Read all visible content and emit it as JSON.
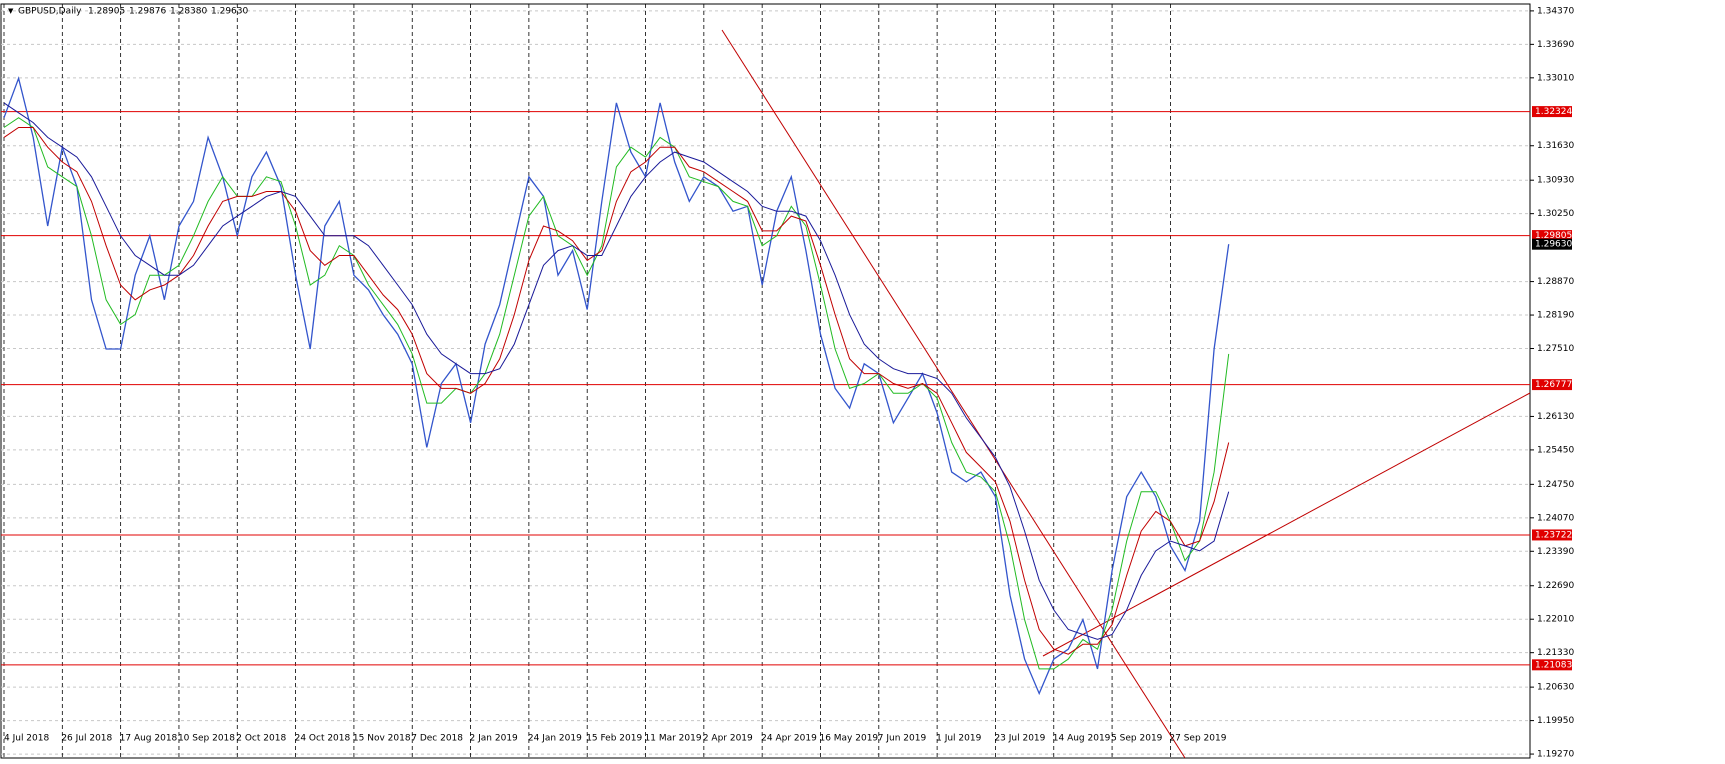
{
  "chart_data": {
    "type": "line",
    "title": "GBPUSD,Daily",
    "quote": [
      1.28905,
      1.29876,
      {
        "value": 1.2838,
        "label": "1.28380"
      },
      {
        "value": 1.2963,
        "label": "1.29630"
      }
    ],
    "categories": [
      "4 Jul 2018",
      null,
      null,
      null,
      "26 Jul 2018",
      null,
      null,
      null,
      "17 Aug 2018",
      null,
      null,
      null,
      "10 Sep 2018",
      null,
      null,
      null,
      "2 Oct 2018",
      null,
      null,
      null,
      "24 Oct 2018",
      null,
      null,
      null,
      "15 Nov 2018",
      null,
      null,
      null,
      "7 Dec 2018",
      null,
      null,
      null,
      "2 Jan 2019",
      null,
      null,
      null,
      "24 Jan 2019",
      null,
      null,
      null,
      "15 Feb 2019",
      null,
      null,
      null,
      "11 Mar 2019",
      null,
      null,
      null,
      "2 Apr 2019",
      null,
      null,
      null,
      "24 Apr 2019",
      null,
      null,
      null,
      "16 May 2019",
      null,
      null,
      null,
      "7 Jun 2019",
      null,
      null,
      null,
      "1 Jul 2019",
      null,
      null,
      null,
      "23 Jul 2019",
      null,
      null,
      null,
      "14 Aug 2019",
      null,
      null,
      null,
      "5 Sep 2019",
      null,
      null,
      null,
      "27 Sep 2019",
      null,
      null,
      null,
      null
    ],
    "series": [
      {
        "color": "#3355cc",
        "values": [
          1.322,
          1.33,
          1.318,
          1.3,
          1.316,
          1.308,
          1.285,
          1.275,
          1.275,
          1.29,
          1.298,
          1.285,
          1.3,
          1.305,
          1.318,
          1.31,
          1.298,
          1.31,
          1.315,
          1.308,
          1.29,
          1.275,
          1.3,
          1.305,
          1.29,
          1.287,
          1.282,
          1.278,
          1.272,
          1.255,
          1.268,
          1.272,
          1.26,
          1.276,
          1.284,
          1.297,
          1.31,
          1.306,
          1.29,
          1.295,
          1.283,
          1.305,
          1.325,
          1.315,
          1.31,
          1.325,
          1.313,
          1.305,
          1.31,
          1.308,
          1.303,
          1.304,
          1.288,
          1.303,
          1.31,
          1.295,
          1.278,
          1.267,
          1.263,
          1.272,
          1.27,
          1.26,
          1.265,
          1.27,
          1.262,
          1.25,
          1.248,
          1.25,
          1.245,
          1.225,
          1.212,
          1.205,
          1.212,
          1.214,
          1.22,
          1.21,
          1.23,
          1.245,
          1.25,
          1.245,
          1.235,
          1.23,
          1.24,
          1.275,
          1.2963
        ]
      },
      {
        "color": "#22bb22",
        "values": [
          1.32,
          1.322,
          1.32,
          1.312,
          1.31,
          1.308,
          1.298,
          1.285,
          1.28,
          1.282,
          1.29,
          1.29,
          1.292,
          1.298,
          1.305,
          1.31,
          1.306,
          1.306,
          1.31,
          1.309,
          1.3,
          1.288,
          1.29,
          1.296,
          1.294,
          1.288,
          1.284,
          1.28,
          1.274,
          1.264,
          1.264,
          1.267,
          1.266,
          1.27,
          1.278,
          1.29,
          1.302,
          1.306,
          1.298,
          1.296,
          1.29,
          1.296,
          1.312,
          1.316,
          1.314,
          1.318,
          1.316,
          1.31,
          1.309,
          1.308,
          1.305,
          1.304,
          1.296,
          1.298,
          1.304,
          1.3,
          1.288,
          1.275,
          1.267,
          1.268,
          1.27,
          1.266,
          1.266,
          1.268,
          1.265,
          1.256,
          1.25,
          1.249,
          1.246,
          1.235,
          1.22,
          1.21,
          1.21,
          1.212,
          1.216,
          1.214,
          1.222,
          1.236,
          1.246,
          1.246,
          1.24,
          1.232,
          1.236,
          1.25,
          1.274
        ]
      },
      {
        "color": "#c00000",
        "values": [
          1.318,
          1.32,
          1.32,
          1.316,
          1.313,
          1.311,
          1.305,
          1.296,
          1.288,
          1.285,
          1.287,
          1.288,
          1.29,
          1.294,
          1.3,
          1.305,
          1.306,
          1.306,
          1.307,
          1.307,
          1.303,
          1.295,
          1.292,
          1.294,
          1.294,
          1.29,
          1.286,
          1.283,
          1.278,
          1.27,
          1.267,
          1.267,
          1.266,
          1.268,
          1.273,
          1.282,
          1.293,
          1.3,
          1.299,
          1.297,
          1.293,
          1.295,
          1.305,
          1.311,
          1.313,
          1.316,
          1.316,
          1.312,
          1.311,
          1.309,
          1.307,
          1.305,
          1.299,
          1.299,
          1.302,
          1.301,
          1.292,
          1.282,
          1.273,
          1.27,
          1.27,
          1.268,
          1.267,
          1.268,
          1.266,
          1.26,
          1.254,
          1.251,
          1.248,
          1.24,
          1.228,
          1.218,
          1.214,
          1.213,
          1.215,
          1.215,
          1.219,
          1.229,
          1.238,
          1.242,
          1.24,
          1.235,
          1.236,
          1.244,
          1.256
        ]
      },
      {
        "color": "#1a1a99",
        "values": [
          1.325,
          1.323,
          1.321,
          1.318,
          1.316,
          1.314,
          1.31,
          1.304,
          1.298,
          1.294,
          1.292,
          1.29,
          1.29,
          1.292,
          1.296,
          1.3,
          1.302,
          1.304,
          1.306,
          1.307,
          1.306,
          1.302,
          1.298,
          1.298,
          1.298,
          1.296,
          1.292,
          1.288,
          1.284,
          1.278,
          1.274,
          1.272,
          1.27,
          1.27,
          1.271,
          1.276,
          1.284,
          1.292,
          1.295,
          1.296,
          1.294,
          1.294,
          1.3,
          1.306,
          1.31,
          1.313,
          1.315,
          1.314,
          1.313,
          1.311,
          1.309,
          1.307,
          1.304,
          1.303,
          1.303,
          1.302,
          1.297,
          1.29,
          1.282,
          1.276,
          1.273,
          1.271,
          1.27,
          1.27,
          1.269,
          1.266,
          1.261,
          1.257,
          1.253,
          1.247,
          1.238,
          1.228,
          1.222,
          1.218,
          1.217,
          1.216,
          1.217,
          1.222,
          1.229,
          1.234,
          1.236,
          1.235,
          1.234,
          1.236,
          1.246
        ]
      }
    ],
    "levels": [
      1.32324,
      1.29805,
      1.26777,
      1.23722,
      1.21083
    ],
    "level_color": "#e00000",
    "current_price": {
      "value": 1.2963,
      "label": "1.29630"
    },
    "ylim": [
      1.1919,
      1.3451
    ],
    "yticks": [
      {
        "value": 1.3437,
        "label": "1.34370"
      },
      {
        "value": 1.3369,
        "label": "1.33690"
      },
      {
        "value": 1.3301,
        "label": "1.33010"
      },
      {
        "value": 1.3163,
        "label": "1.31630"
      },
      {
        "value": 1.3093,
        "label": "1.30930"
      },
      {
        "value": 1.3025,
        "label": "1.30250"
      },
      {
        "value": 1.2887,
        "label": "1.28870"
      },
      {
        "value": 1.2819,
        "label": "1.28190"
      },
      {
        "value": 1.2751,
        "label": "1.27510"
      },
      {
        "value": 1.2613,
        "label": "1.26130"
      },
      {
        "value": 1.2545,
        "label": "1.25450"
      },
      {
        "value": 1.2475,
        "label": "1.24750"
      },
      {
        "value": 1.2407,
        "label": "1.24070"
      },
      {
        "value": 1.2339,
        "label": "1.23390"
      },
      {
        "value": 1.2269,
        "label": "1.22690"
      },
      {
        "value": 1.2201,
        "label": "1.22010"
      },
      {
        "value": 1.2133,
        "label": "1.21330"
      },
      {
        "value": 1.2063,
        "label": "1.20630"
      },
      {
        "value": 1.1995,
        "label": "1.19950"
      },
      {
        "value": 1.1927,
        "label": "1.19270"
      }
    ],
    "grid": true
  }
}
